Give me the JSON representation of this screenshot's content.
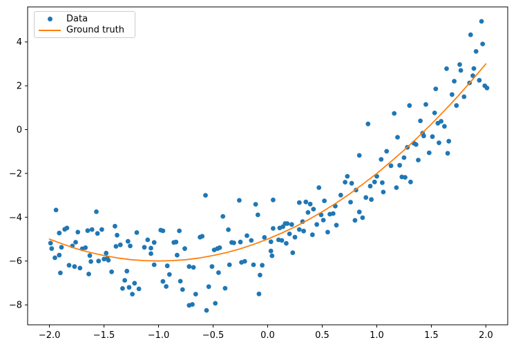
{
  "figure": {
    "background": "#ffffff"
  },
  "chart_data": {
    "type": "scatter",
    "title": "",
    "xlabel": "",
    "ylabel": "",
    "xlim": [
      -2.2,
      2.2
    ],
    "ylim": [
      -8.91,
      5.6
    ],
    "grid": false,
    "legend_position": "upper left",
    "axis_color": "#000000",
    "xticks": {
      "values": [
        -2.0,
        -1.5,
        -1.0,
        -0.5,
        0.0,
        0.5,
        1.0,
        1.5,
        2.0
      ],
      "labels": [
        "−2.0",
        "−1.5",
        "−1.0",
        "−0.5",
        "0.0",
        "0.5",
        "1.0",
        "1.5",
        "2.0"
      ]
    },
    "yticks": {
      "values": [
        -8,
        -6,
        -4,
        -2,
        0,
        2,
        4
      ],
      "labels": [
        "−8",
        "−6",
        "−4",
        "−2",
        "0",
        "2",
        "4"
      ]
    },
    "series": [
      {
        "name": "Data",
        "type": "scatter",
        "color": "#1f77b4",
        "marker_radius": 3.4,
        "points": [
          [
            -1.99,
            -5.18
          ],
          [
            -1.98,
            -5.43
          ],
          [
            -1.95,
            -5.85
          ],
          [
            -1.94,
            -3.67
          ],
          [
            -1.91,
            -4.72
          ],
          [
            -1.91,
            -5.73
          ],
          [
            -1.9,
            -6.54
          ],
          [
            -1.89,
            -5.37
          ],
          [
            -1.86,
            -4.55
          ],
          [
            -1.84,
            -4.49
          ],
          [
            -1.82,
            -6.19
          ],
          [
            -1.79,
            -5.31
          ],
          [
            -1.77,
            -6.25
          ],
          [
            -1.76,
            -5.14
          ],
          [
            -1.74,
            -4.68
          ],
          [
            -1.72,
            -6.32
          ],
          [
            -1.7,
            -5.44
          ],
          [
            -1.67,
            -5.39
          ],
          [
            -1.65,
            -4.61
          ],
          [
            -1.64,
            -6.59
          ],
          [
            -1.63,
            -5.75
          ],
          [
            -1.62,
            -6.02
          ],
          [
            -1.61,
            -4.56
          ],
          [
            -1.57,
            -3.75
          ],
          [
            -1.56,
            -4.74
          ],
          [
            -1.55,
            -6.0
          ],
          [
            -1.52,
            -4.56
          ],
          [
            -1.5,
            -5.91
          ],
          [
            -1.48,
            -5.64
          ],
          [
            -1.47,
            -5.88
          ],
          [
            -1.46,
            -5.96
          ],
          [
            -1.43,
            -6.49
          ],
          [
            -1.4,
            -4.41
          ],
          [
            -1.39,
            -5.33
          ],
          [
            -1.38,
            -4.82
          ],
          [
            -1.35,
            -5.26
          ],
          [
            -1.33,
            -7.25
          ],
          [
            -1.31,
            -6.88
          ],
          [
            -1.29,
            -6.46
          ],
          [
            -1.28,
            -5.1
          ],
          [
            -1.27,
            -7.2
          ],
          [
            -1.26,
            -5.31
          ],
          [
            -1.24,
            -7.51
          ],
          [
            -1.22,
            -7.01
          ],
          [
            -1.2,
            -4.7
          ],
          [
            -1.18,
            -7.27
          ],
          [
            -1.13,
            -5.37
          ],
          [
            -1.1,
            -5.03
          ],
          [
            -1.07,
            -5.41
          ],
          [
            -1.07,
            -5.66
          ],
          [
            -1.04,
            -5.15
          ],
          [
            -1.04,
            -6.17
          ],
          [
            -0.98,
            -4.59
          ],
          [
            -0.96,
            -4.62
          ],
          [
            -0.96,
            -6.93
          ],
          [
            -0.93,
            -7.16
          ],
          [
            -0.92,
            -6.22
          ],
          [
            -0.9,
            -6.61
          ],
          [
            -0.86,
            -5.15
          ],
          [
            -0.84,
            -5.13
          ],
          [
            -0.83,
            -5.73
          ],
          [
            -0.81,
            -4.62
          ],
          [
            -0.8,
            -6.92
          ],
          [
            -0.78,
            -7.3
          ],
          [
            -0.76,
            -5.43
          ],
          [
            -0.72,
            -6.25
          ],
          [
            -0.72,
            -8.02
          ],
          [
            -0.69,
            -7.98
          ],
          [
            -0.68,
            -6.29
          ],
          [
            -0.66,
            -7.51
          ],
          [
            -0.62,
            -4.91
          ],
          [
            -0.6,
            -4.87
          ],
          [
            -0.57,
            -3.0
          ],
          [
            -0.56,
            -8.25
          ],
          [
            -0.54,
            -7.17
          ],
          [
            -0.51,
            -6.25
          ],
          [
            -0.49,
            -5.49
          ],
          [
            -0.48,
            -7.93
          ],
          [
            -0.46,
            -5.43
          ],
          [
            -0.45,
            -6.53
          ],
          [
            -0.44,
            -5.39
          ],
          [
            -0.41,
            -3.96
          ],
          [
            -0.39,
            -7.24
          ],
          [
            -0.36,
            -4.57
          ],
          [
            -0.35,
            -6.17
          ],
          [
            -0.33,
            -5.15
          ],
          [
            -0.31,
            -5.17
          ],
          [
            -0.26,
            -3.23
          ],
          [
            -0.25,
            -5.13
          ],
          [
            -0.24,
            -6.06
          ],
          [
            -0.21,
            -6.01
          ],
          [
            -0.19,
            -4.84
          ],
          [
            -0.15,
            -5.06
          ],
          [
            -0.13,
            -6.17
          ],
          [
            -0.11,
            -3.41
          ],
          [
            -0.09,
            -3.89
          ],
          [
            -0.08,
            -7.5
          ],
          [
            -0.07,
            -6.64
          ],
          [
            -0.05,
            -6.19
          ],
          [
            -0.03,
            -4.92
          ],
          [
            0.03,
            -5.12
          ],
          [
            0.03,
            -5.54
          ],
          [
            0.04,
            -5.76
          ],
          [
            0.05,
            -3.21
          ],
          [
            0.05,
            -4.51
          ],
          [
            0.1,
            -5.03
          ],
          [
            0.11,
            -4.49
          ],
          [
            0.13,
            -5.06
          ],
          [
            0.14,
            -4.43
          ],
          [
            0.16,
            -4.29
          ],
          [
            0.17,
            -5.19
          ],
          [
            0.18,
            -4.29
          ],
          [
            0.2,
            -4.76
          ],
          [
            0.22,
            -4.33
          ],
          [
            0.23,
            -5.62
          ],
          [
            0.25,
            -4.91
          ],
          [
            0.29,
            -3.33
          ],
          [
            0.29,
            -4.56
          ],
          [
            0.32,
            -4.2
          ],
          [
            0.33,
            -4.63
          ],
          [
            0.35,
            -3.3
          ],
          [
            0.37,
            -3.78
          ],
          [
            0.39,
            -3.4
          ],
          [
            0.41,
            -4.8
          ],
          [
            0.42,
            -3.63
          ],
          [
            0.45,
            -4.33
          ],
          [
            0.47,
            -2.65
          ],
          [
            0.49,
            -3.89
          ],
          [
            0.51,
            -4.13
          ],
          [
            0.52,
            -3.25
          ],
          [
            0.55,
            -4.68
          ],
          [
            0.57,
            -3.86
          ],
          [
            0.6,
            -3.83
          ],
          [
            0.62,
            -3.49
          ],
          [
            0.63,
            -4.36
          ],
          [
            0.67,
            -2.99
          ],
          [
            0.71,
            -2.4
          ],
          [
            0.73,
            -2.13
          ],
          [
            0.76,
            -3.31
          ],
          [
            0.77,
            -2.45
          ],
          [
            0.8,
            -4.14
          ],
          [
            0.81,
            -2.76
          ],
          [
            0.84,
            -3.76
          ],
          [
            0.84,
            -1.18
          ],
          [
            0.87,
            -4.02
          ],
          [
            0.9,
            -3.1
          ],
          [
            0.92,
            0.26
          ],
          [
            0.94,
            -2.58
          ],
          [
            0.95,
            -3.19
          ],
          [
            0.98,
            -2.39
          ],
          [
            1.0,
            -2.13
          ],
          [
            1.04,
            -1.36
          ],
          [
            1.05,
            -2.42
          ],
          [
            1.06,
            -2.85
          ],
          [
            1.09,
            -0.99
          ],
          [
            1.13,
            -1.65
          ],
          [
            1.16,
            0.74
          ],
          [
            1.18,
            -2.65
          ],
          [
            1.19,
            -0.35
          ],
          [
            1.21,
            -1.63
          ],
          [
            1.23,
            -2.16
          ],
          [
            1.25,
            -1.28
          ],
          [
            1.26,
            -2.18
          ],
          [
            1.28,
            -0.81
          ],
          [
            1.3,
            1.1
          ],
          [
            1.31,
            -2.39
          ],
          [
            1.34,
            -0.62
          ],
          [
            1.36,
            -0.68
          ],
          [
            1.38,
            -1.39
          ],
          [
            1.4,
            0.4
          ],
          [
            1.42,
            -0.16
          ],
          [
            1.43,
            -0.29
          ],
          [
            1.45,
            1.15
          ],
          [
            1.48,
            -1.06
          ],
          [
            1.51,
            -0.32
          ],
          [
            1.53,
            0.76
          ],
          [
            1.54,
            1.86
          ],
          [
            1.56,
            0.29
          ],
          [
            1.57,
            -0.6
          ],
          [
            1.59,
            0.38
          ],
          [
            1.62,
            0.15
          ],
          [
            1.64,
            2.78
          ],
          [
            1.65,
            -1.08
          ],
          [
            1.66,
            -0.53
          ],
          [
            1.69,
            1.6
          ],
          [
            1.71,
            2.21
          ],
          [
            1.73,
            1.1
          ],
          [
            1.76,
            2.97
          ],
          [
            1.77,
            2.7
          ],
          [
            1.8,
            1.5
          ],
          [
            1.85,
            2.13
          ],
          [
            1.86,
            4.33
          ],
          [
            1.88,
            2.46
          ],
          [
            1.89,
            2.79
          ],
          [
            1.91,
            3.57
          ],
          [
            1.94,
            2.25
          ],
          [
            1.96,
            4.94
          ],
          [
            1.97,
            3.91
          ],
          [
            1.99,
            2.0
          ],
          [
            2.01,
            1.9
          ]
        ]
      },
      {
        "name": "Ground truth",
        "type": "line",
        "color": "#ff7f0e",
        "line_width": 1.8,
        "points": [
          [
            -2.0,
            -5.0
          ],
          [
            -1.875,
            -5.23
          ],
          [
            -1.75,
            -5.44
          ],
          [
            -1.625,
            -5.61
          ],
          [
            -1.5,
            -5.75
          ],
          [
            -1.375,
            -5.86
          ],
          [
            -1.25,
            -5.94
          ],
          [
            -1.125,
            -5.98
          ],
          [
            -1.0,
            -6.0
          ],
          [
            -0.875,
            -5.98
          ],
          [
            -0.75,
            -5.94
          ],
          [
            -0.625,
            -5.86
          ],
          [
            -0.5,
            -5.75
          ],
          [
            -0.375,
            -5.61
          ],
          [
            -0.25,
            -5.44
          ],
          [
            -0.125,
            -5.23
          ],
          [
            0.0,
            -5.0
          ],
          [
            0.125,
            -4.73
          ],
          [
            0.25,
            -4.44
          ],
          [
            0.375,
            -4.11
          ],
          [
            0.5,
            -3.75
          ],
          [
            0.625,
            -3.36
          ],
          [
            0.75,
            -2.94
          ],
          [
            0.875,
            -2.48
          ],
          [
            1.0,
            -2.0
          ],
          [
            1.125,
            -1.48
          ],
          [
            1.25,
            -0.94
          ],
          [
            1.375,
            -0.36
          ],
          [
            1.5,
            0.25
          ],
          [
            1.625,
            0.89
          ],
          [
            1.75,
            1.56
          ],
          [
            1.875,
            2.27
          ],
          [
            2.0,
            3.0
          ]
        ]
      }
    ]
  }
}
